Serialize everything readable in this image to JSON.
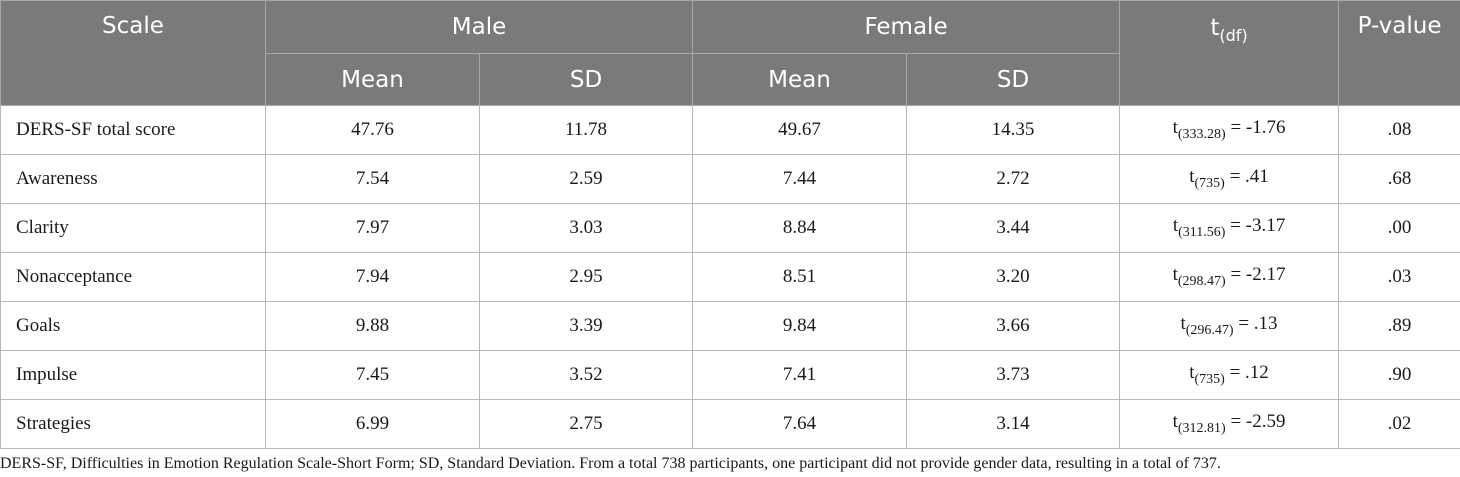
{
  "header": {
    "scale": "Scale",
    "male": "Male",
    "female": "Female",
    "t_main": "t",
    "t_sub": "(df)",
    "p_value": "P-value",
    "mean": "Mean",
    "sd": "SD"
  },
  "rows": [
    {
      "scale": "DERS-SF total score",
      "male_mean": "47.76",
      "male_sd": "11.78",
      "female_mean": "49.67",
      "female_sd": "14.35",
      "t_df": "(333.28)",
      "t_val": " = -1.76",
      "p": ".08"
    },
    {
      "scale": "Awareness",
      "male_mean": "7.54",
      "male_sd": "2.59",
      "female_mean": "7.44",
      "female_sd": "2.72",
      "t_df": "(735)",
      "t_val": " = .41",
      "p": ".68"
    },
    {
      "scale": "Clarity",
      "male_mean": "7.97",
      "male_sd": "3.03",
      "female_mean": "8.84",
      "female_sd": "3.44",
      "t_df": "(311.56)",
      "t_val": " = -3.17",
      "p": ".00"
    },
    {
      "scale": "Nonacceptance",
      "male_mean": "7.94",
      "male_sd": "2.95",
      "female_mean": "8.51",
      "female_sd": "3.20",
      "t_df": "(298.47)",
      "t_val": " = -2.17",
      "p": ".03"
    },
    {
      "scale": "Goals",
      "male_mean": "9.88",
      "male_sd": "3.39",
      "female_mean": "9.84",
      "female_sd": "3.66",
      "t_df": "(296.47)",
      "t_val": " = .13",
      "p": ".89"
    },
    {
      "scale": "Impulse",
      "male_mean": "7.45",
      "male_sd": "3.52",
      "female_mean": "7.41",
      "female_sd": "3.73",
      "t_df": "(735)",
      "t_val": " = .12",
      "p": ".90"
    },
    {
      "scale": "Strategies",
      "male_mean": "6.99",
      "male_sd": "2.75",
      "female_mean": "7.64",
      "female_sd": "3.14",
      "t_df": "(312.81)",
      "t_val": " = -2.59",
      "p": ".02"
    }
  ],
  "t_prefix": "t",
  "footnote": "DERS-SF, Difficulties in Emotion Regulation Scale-Short Form; SD, Standard Deviation. From a total 738 participants, one participant did not provide gender data, resulting in a total of 737."
}
